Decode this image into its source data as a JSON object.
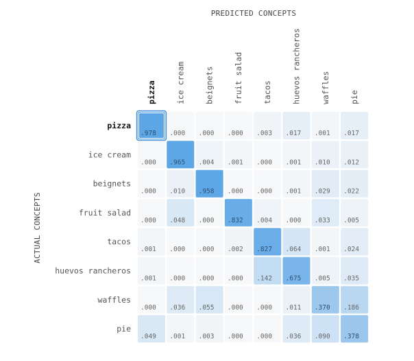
{
  "chart_data": {
    "type": "heatmap",
    "xlabel": "PREDICTED CONCEPTS",
    "ylabel": "ACTUAL CONCEPTS",
    "selected": "pizza",
    "columns": [
      "pizza",
      "ice cream",
      "beignets",
      "fruit salad",
      "tacos",
      "huevos rancheros",
      "waffles",
      "pie"
    ],
    "rows": [
      "pizza",
      "ice cream",
      "beignets",
      "fruit salad",
      "tacos",
      "huevos rancheros",
      "waffles",
      "pie"
    ],
    "values": [
      [
        ".978",
        ".000",
        ".000",
        ".000",
        ".003",
        ".017",
        ".001",
        ".017"
      ],
      [
        ".000",
        ".965",
        ".004",
        ".001",
        ".000",
        ".001",
        ".010",
        ".012"
      ],
      [
        ".000",
        ".010",
        ".958",
        ".000",
        ".000",
        ".001",
        ".029",
        ".022"
      ],
      [
        ".000",
        ".048",
        ".000",
        ".832",
        ".004",
        ".000",
        ".033",
        ".005"
      ],
      [
        ".001",
        ".000",
        ".000",
        ".002",
        ".827",
        ".064",
        ".001",
        ".024"
      ],
      [
        ".001",
        ".000",
        ".000",
        ".000",
        ".142",
        ".675",
        ".005",
        ".035"
      ],
      [
        ".000",
        ".036",
        ".055",
        ".000",
        ".000",
        ".011",
        ".370",
        ".186"
      ],
      [
        ".049",
        ".001",
        ".003",
        ".000",
        ".000",
        ".036",
        ".090",
        ".378"
      ]
    ],
    "colors": {
      "low": "#f7f8f9",
      "high": "#5aa5e6",
      "selected_border": "#4a90d6"
    }
  }
}
